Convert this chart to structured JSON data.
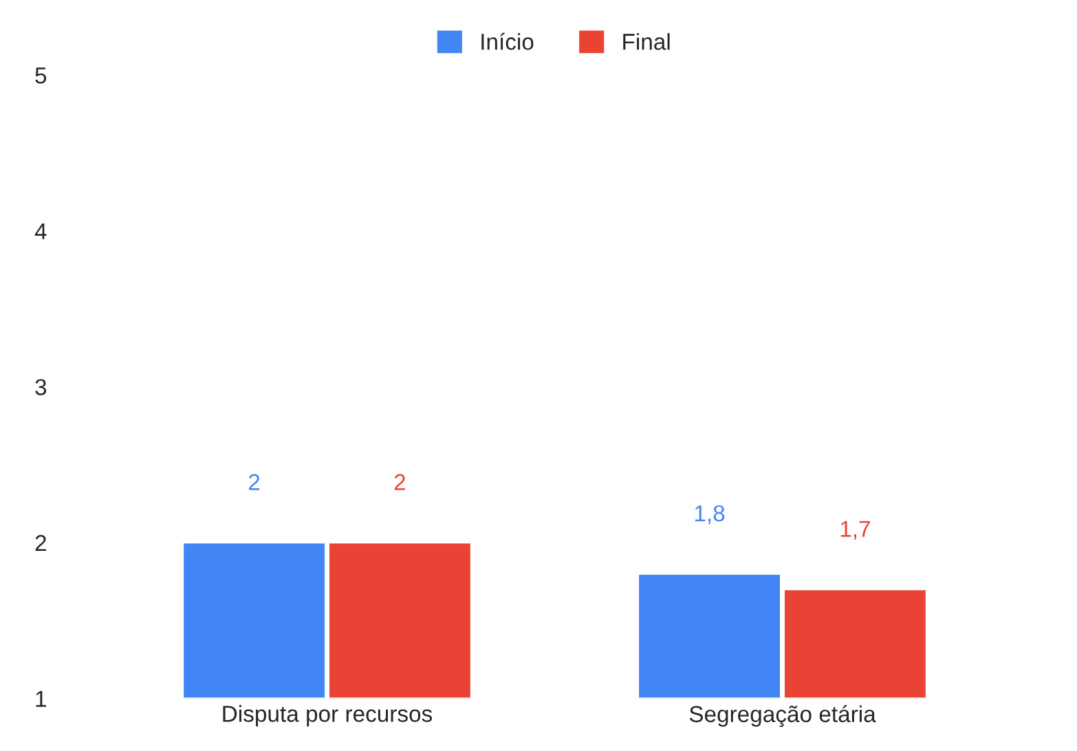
{
  "chart_data": {
    "type": "bar",
    "categories": [
      "Disputa por recursos",
      "Segregação etária"
    ],
    "series": [
      {
        "name": "Início",
        "color": "#4285f4",
        "values": [
          2,
          1.8
        ],
        "value_labels": [
          "2",
          "1,8"
        ]
      },
      {
        "name": "Final",
        "color": "#ea4335",
        "values": [
          2,
          1.7
        ],
        "value_labels": [
          "2",
          "1,7"
        ]
      }
    ],
    "ylim": [
      1,
      5
    ],
    "yticks": [
      1,
      2,
      3,
      4,
      5
    ],
    "grid": false,
    "legend": "top"
  }
}
